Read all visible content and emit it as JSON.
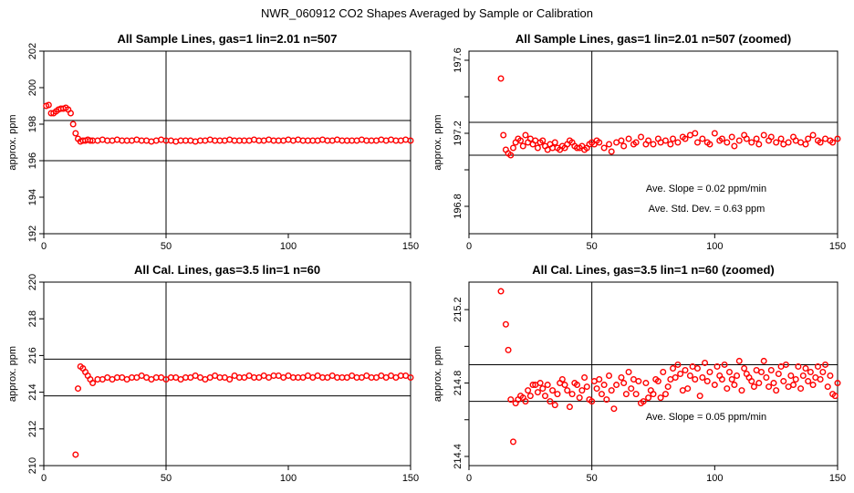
{
  "title": "NWR_060912  CO2 Shapes Averaged by Sample or Calibration",
  "colors": {
    "points": "#ff0000",
    "lines": "#000000",
    "background": "#ffffff"
  },
  "chart_data": [
    {
      "type": "scatter",
      "title": "All Sample Lines, gas=1 lin=2.01 n=507",
      "xlabel": "",
      "ylabel": "approx. ppm",
      "xlim": [
        0,
        150
      ],
      "ylim": [
        192,
        202
      ],
      "xticks": [
        0,
        50,
        100,
        150
      ],
      "yticks": [
        192,
        194,
        196,
        198,
        200,
        202
      ],
      "hlines": [
        196.0,
        198.2
      ],
      "vline": 50,
      "annotations": [],
      "series": [
        {
          "marker": "open-circle",
          "x": [
            1,
            2,
            3,
            4,
            5,
            6,
            7,
            8,
            9,
            10,
            11,
            12,
            13,
            14,
            15,
            16,
            17,
            18,
            19,
            20,
            22,
            24,
            26,
            28,
            30,
            32,
            34,
            36,
            38,
            40,
            42,
            44,
            46,
            48,
            50,
            52,
            54,
            56,
            58,
            60,
            62,
            64,
            66,
            68,
            70,
            72,
            74,
            76,
            78,
            80,
            82,
            84,
            86,
            88,
            90,
            92,
            94,
            96,
            98,
            100,
            102,
            104,
            106,
            108,
            110,
            112,
            114,
            116,
            118,
            120,
            122,
            124,
            126,
            128,
            130,
            132,
            134,
            136,
            138,
            140,
            142,
            144,
            146,
            148,
            150
          ],
          "y": [
            199.0,
            199.05,
            198.6,
            198.6,
            198.7,
            198.8,
            198.85,
            198.85,
            198.9,
            198.8,
            198.6,
            198.0,
            197.5,
            197.2,
            197.05,
            197.1,
            197.1,
            197.15,
            197.1,
            197.1,
            197.1,
            197.15,
            197.1,
            197.1,
            197.15,
            197.1,
            197.1,
            197.1,
            197.15,
            197.1,
            197.1,
            197.05,
            197.1,
            197.15,
            197.1,
            197.1,
            197.05,
            197.1,
            197.1,
            197.1,
            197.05,
            197.1,
            197.1,
            197.15,
            197.1,
            197.1,
            197.1,
            197.15,
            197.1,
            197.1,
            197.1,
            197.1,
            197.15,
            197.1,
            197.1,
            197.15,
            197.1,
            197.1,
            197.1,
            197.15,
            197.1,
            197.15,
            197.1,
            197.1,
            197.1,
            197.1,
            197.15,
            197.1,
            197.1,
            197.15,
            197.1,
            197.1,
            197.1,
            197.1,
            197.15,
            197.1,
            197.1,
            197.1,
            197.15,
            197.1,
            197.15,
            197.1,
            197.1,
            197.15,
            197.1
          ]
        }
      ]
    },
    {
      "type": "scatter",
      "title": "All Sample Lines, gas=1 lin=2.01 n=507 (zoomed)",
      "xlabel": "",
      "ylabel": "approx. ppm",
      "xlim": [
        0,
        150
      ],
      "ylim": [
        196.65,
        197.65
      ],
      "xticks": [
        0,
        50,
        100,
        150
      ],
      "yticks": [
        196.8,
        197.2,
        197.6
      ],
      "yticks_minor": [
        197.0,
        197.4
      ],
      "hlines": [
        197.08,
        197.26
      ],
      "vline": 50,
      "annotations": [
        {
          "text": "Ave. Slope =  0.02  ppm/min",
          "x": 72,
          "y": 196.88
        },
        {
          "text": "Ave. Std. Dev. =  0.63  ppm",
          "x": 73,
          "y": 196.77
        }
      ],
      "series": [
        {
          "marker": "open-circle",
          "x": [
            13,
            14,
            15,
            16,
            17,
            18,
            19,
            20,
            21,
            22,
            23,
            24,
            25,
            26,
            27,
            28,
            29,
            30,
            31,
            32,
            33,
            34,
            35,
            36,
            37,
            38,
            39,
            40,
            41,
            42,
            43,
            44,
            45,
            46,
            47,
            48,
            49,
            50,
            51,
            52,
            53,
            55,
            57,
            58,
            60,
            62,
            63,
            65,
            67,
            68,
            70,
            72,
            73,
            75,
            77,
            78,
            80,
            82,
            83,
            85,
            87,
            88,
            90,
            92,
            93,
            95,
            97,
            98,
            100,
            102,
            103,
            105,
            107,
            108,
            110,
            112,
            113,
            115,
            117,
            118,
            120,
            122,
            123,
            125,
            127,
            128,
            130,
            132,
            133,
            135,
            137,
            138,
            140,
            142,
            143,
            145,
            147,
            148,
            150
          ],
          "y": [
            197.5,
            197.19,
            197.11,
            197.09,
            197.08,
            197.12,
            197.15,
            197.17,
            197.16,
            197.13,
            197.19,
            197.15,
            197.17,
            197.14,
            197.16,
            197.12,
            197.15,
            197.16,
            197.13,
            197.11,
            197.14,
            197.12,
            197.15,
            197.12,
            197.11,
            197.13,
            197.12,
            197.14,
            197.16,
            197.15,
            197.13,
            197.12,
            197.12,
            197.13,
            197.11,
            197.12,
            197.14,
            197.15,
            197.14,
            197.16,
            197.15,
            197.12,
            197.14,
            197.1,
            197.15,
            197.16,
            197.13,
            197.17,
            197.14,
            197.15,
            197.18,
            197.14,
            197.16,
            197.14,
            197.17,
            197.15,
            197.16,
            197.14,
            197.17,
            197.15,
            197.18,
            197.17,
            197.19,
            197.2,
            197.15,
            197.17,
            197.15,
            197.14,
            197.2,
            197.16,
            197.17,
            197.15,
            197.18,
            197.13,
            197.16,
            197.19,
            197.17,
            197.15,
            197.17,
            197.14,
            197.19,
            197.16,
            197.18,
            197.15,
            197.17,
            197.14,
            197.15,
            197.18,
            197.16,
            197.15,
            197.14,
            197.17,
            197.19,
            197.16,
            197.15,
            197.17,
            197.16,
            197.15,
            197.17
          ]
        }
      ]
    },
    {
      "type": "scatter",
      "title": "All Cal. Lines, gas=3.5 lin=1 n=60",
      "xlabel": "",
      "ylabel": "approx. ppm",
      "xlim": [
        0,
        150
      ],
      "ylim": [
        210,
        220
      ],
      "xticks": [
        0,
        50,
        100,
        150
      ],
      "yticks": [
        210,
        212,
        214,
        216,
        218,
        220
      ],
      "hlines": [
        213.8,
        215.8
      ],
      "vline": 50,
      "annotations": [],
      "series": [
        {
          "marker": "open-circle",
          "x": [
            13,
            14,
            15,
            16,
            17,
            18,
            19,
            20,
            22,
            24,
            26,
            28,
            30,
            32,
            34,
            36,
            38,
            40,
            42,
            44,
            46,
            48,
            50,
            52,
            54,
            56,
            58,
            60,
            62,
            64,
            66,
            68,
            70,
            72,
            74,
            76,
            78,
            80,
            82,
            84,
            86,
            88,
            90,
            92,
            94,
            96,
            98,
            100,
            102,
            104,
            106,
            108,
            110,
            112,
            114,
            116,
            118,
            120,
            122,
            124,
            126,
            128,
            130,
            132,
            134,
            136,
            138,
            140,
            142,
            144,
            146,
            148,
            150
          ],
          "y": [
            210.6,
            214.2,
            215.4,
            215.3,
            215.1,
            214.9,
            214.7,
            214.5,
            214.7,
            214.7,
            214.8,
            214.7,
            214.8,
            214.8,
            214.7,
            214.8,
            214.8,
            214.9,
            214.8,
            214.7,
            214.8,
            214.8,
            214.7,
            214.8,
            214.8,
            214.7,
            214.8,
            214.8,
            214.9,
            214.8,
            214.7,
            214.8,
            214.9,
            214.8,
            214.8,
            214.7,
            214.9,
            214.8,
            214.8,
            214.9,
            214.8,
            214.8,
            214.9,
            214.8,
            214.9,
            214.9,
            214.8,
            214.9,
            214.8,
            214.8,
            214.8,
            214.9,
            214.8,
            214.9,
            214.8,
            214.8,
            214.9,
            214.8,
            214.8,
            214.8,
            214.9,
            214.8,
            214.8,
            214.9,
            214.8,
            214.8,
            214.9,
            214.8,
            214.9,
            214.8,
            214.9,
            214.9,
            214.8
          ]
        }
      ]
    },
    {
      "type": "scatter",
      "title": "All Cal. Lines, gas=3.5 lin=1 n=60 (zoomed)",
      "xlabel": "",
      "ylabel": "approx. ppm",
      "xlim": [
        0,
        150
      ],
      "ylim": [
        214.35,
        215.35
      ],
      "xticks": [
        0,
        50,
        100,
        150
      ],
      "yticks": [
        214.4,
        214.8,
        215.2
      ],
      "yticks_minor": [
        214.6,
        215.0
      ],
      "hlines": [
        214.7,
        214.9
      ],
      "vline": 50,
      "annotations": [
        {
          "text": "Ave. Slope =  0.05  ppm/min",
          "x": 72,
          "y": 214.6
        }
      ],
      "series": [
        {
          "marker": "open-circle",
          "x": [
            13,
            15,
            16,
            17,
            18,
            19,
            20,
            21,
            22,
            23,
            24,
            25,
            26,
            27,
            28,
            29,
            30,
            31,
            32,
            33,
            34,
            35,
            36,
            37,
            38,
            39,
            40,
            41,
            42,
            43,
            44,
            45,
            46,
            47,
            48,
            49,
            50,
            51,
            52,
            53,
            54,
            55,
            56,
            57,
            58,
            59,
            60,
            62,
            63,
            64,
            65,
            66,
            67,
            68,
            69,
            70,
            71,
            72,
            73,
            74,
            75,
            76,
            77,
            78,
            79,
            80,
            81,
            82,
            83,
            84,
            85,
            86,
            87,
            88,
            89,
            90,
            91,
            92,
            93,
            94,
            95,
            96,
            97,
            98,
            100,
            101,
            102,
            103,
            104,
            105,
            106,
            107,
            108,
            109,
            110,
            111,
            112,
            113,
            114,
            115,
            116,
            117,
            118,
            119,
            120,
            121,
            122,
            123,
            124,
            125,
            126,
            127,
            128,
            129,
            130,
            131,
            132,
            133,
            134,
            135,
            136,
            137,
            138,
            139,
            140,
            141,
            142,
            143,
            144,
            145,
            146,
            147,
            148,
            149,
            150
          ],
          "y": [
            215.3,
            215.12,
            214.98,
            214.71,
            214.48,
            214.69,
            214.71,
            214.73,
            214.72,
            214.7,
            214.76,
            214.73,
            214.79,
            214.79,
            214.75,
            214.8,
            214.77,
            214.73,
            214.79,
            214.7,
            214.76,
            214.68,
            214.74,
            214.8,
            214.82,
            214.79,
            214.76,
            214.67,
            214.74,
            214.8,
            214.79,
            214.72,
            214.76,
            214.83,
            214.78,
            214.71,
            214.7,
            214.81,
            214.77,
            214.82,
            214.74,
            214.79,
            214.71,
            214.84,
            214.76,
            214.66,
            214.79,
            214.83,
            214.8,
            214.74,
            214.86,
            214.77,
            214.82,
            214.74,
            214.81,
            214.69,
            214.7,
            214.8,
            214.72,
            214.76,
            214.74,
            214.82,
            214.81,
            214.72,
            214.86,
            214.74,
            214.78,
            214.82,
            214.88,
            214.83,
            214.9,
            214.85,
            214.76,
            214.87,
            214.77,
            214.84,
            214.89,
            214.82,
            214.88,
            214.73,
            214.83,
            214.91,
            214.81,
            214.86,
            214.79,
            214.89,
            214.84,
            214.82,
            214.9,
            214.77,
            214.86,
            214.82,
            214.79,
            214.84,
            214.92,
            214.76,
            214.88,
            214.85,
            214.83,
            214.81,
            214.78,
            214.87,
            214.8,
            214.86,
            214.92,
            214.83,
            214.78,
            214.87,
            214.8,
            214.76,
            214.85,
            214.89,
            214.81,
            214.9,
            214.78,
            214.84,
            214.79,
            214.82,
            214.89,
            214.77,
            214.84,
            214.88,
            214.81,
            214.86,
            214.79,
            214.83,
            214.89,
            214.82,
            214.86,
            214.9,
            214.78,
            214.84,
            214.74,
            214.73,
            214.8
          ]
        }
      ]
    }
  ]
}
